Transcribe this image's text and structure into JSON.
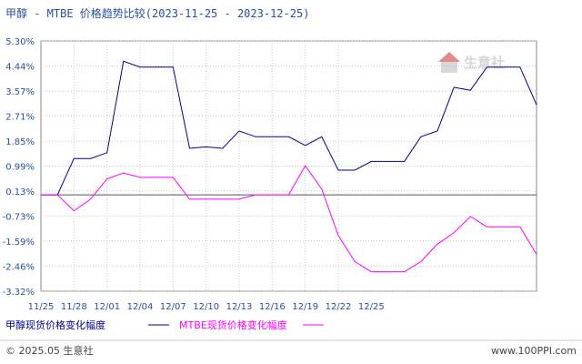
{
  "header": {
    "title": "甲醇 - MTBE 价格趋势比较(2023-11-25 - 2023-12-25)"
  },
  "watermark": {
    "text": "生意社"
  },
  "footer": {
    "copyright": "© 2025.05 生意社",
    "site": "www.100PPI.com"
  },
  "chart_data": {
    "type": "line",
    "title": "甲醇 - MTBE 价格趋势比较(2023-11-25 - 2023-12-25)",
    "xlabel": "",
    "ylabel": "",
    "ylim": [
      -3.32,
      5.3
    ],
    "y_ticks": [
      "5.30%",
      "4.44%",
      "3.57%",
      "2.71%",
      "1.85%",
      "0.99%",
      "0.13%",
      "-0.73%",
      "-1.59%",
      "-2.46%",
      "-3.32%"
    ],
    "y_tick_values": [
      5.3,
      4.44,
      3.57,
      2.71,
      1.85,
      0.99,
      0.13,
      -0.73,
      -1.59,
      -2.46,
      -3.32
    ],
    "x_ticks": [
      "11/25",
      "11/28",
      "12/01",
      "12/04",
      "12/07",
      "12/10",
      "12/13",
      "12/16",
      "12/19",
      "12/22",
      "12/25"
    ],
    "x_tick_values": [
      0,
      3,
      6,
      9,
      12,
      15,
      18,
      21,
      24,
      27,
      30
    ],
    "zero_line": 0,
    "grid": true,
    "legend_position": "bottom-left",
    "series": [
      {
        "name": "甲醇现货价格变化幅度",
        "color": "#00008b",
        "points": [
          [
            0,
            0
          ],
          [
            1.5,
            0
          ],
          [
            3,
            1.25
          ],
          [
            4.5,
            1.25
          ],
          [
            6,
            1.45
          ],
          [
            7.5,
            4.6
          ],
          [
            9,
            4.4
          ],
          [
            10.5,
            4.4
          ],
          [
            12,
            4.4
          ],
          [
            13.5,
            1.6
          ],
          [
            15,
            1.65
          ],
          [
            16.5,
            1.6
          ],
          [
            18,
            2.2
          ],
          [
            19.5,
            2.0
          ],
          [
            21,
            2.0
          ],
          [
            22.5,
            2.0
          ],
          [
            24,
            1.7
          ],
          [
            25.5,
            2.0
          ],
          [
            27,
            0.85
          ],
          [
            28.5,
            0.85
          ],
          [
            30,
            1.15
          ],
          [
            31.5,
            1.15
          ],
          [
            33,
            1.15
          ],
          [
            34.5,
            2.0
          ],
          [
            36,
            2.2
          ],
          [
            37.5,
            3.7
          ],
          [
            39,
            3.6
          ],
          [
            40.5,
            4.4
          ],
          [
            42,
            4.4
          ],
          [
            43.5,
            4.4
          ],
          [
            45,
            3.1
          ]
        ]
      },
      {
        "name": "MTBE现货价格变化幅度",
        "color": "#ff00ff",
        "points": [
          [
            0,
            0
          ],
          [
            1.5,
            0
          ],
          [
            3,
            -0.55
          ],
          [
            4.5,
            -0.15
          ],
          [
            6,
            0.55
          ],
          [
            7.5,
            0.75
          ],
          [
            9,
            0.6
          ],
          [
            10.5,
            0.6
          ],
          [
            12,
            0.6
          ],
          [
            13.5,
            -0.15
          ],
          [
            15,
            -0.15
          ],
          [
            16.5,
            -0.15
          ],
          [
            18,
            -0.15
          ],
          [
            19.5,
            0
          ],
          [
            21,
            0
          ],
          [
            22.5,
            0
          ],
          [
            24,
            1.0
          ],
          [
            25.5,
            0.2
          ],
          [
            27,
            -1.4
          ],
          [
            28.5,
            -2.3
          ],
          [
            30,
            -2.65
          ],
          [
            31.5,
            -2.65
          ],
          [
            33,
            -2.65
          ],
          [
            34.5,
            -2.3
          ],
          [
            36,
            -1.7
          ],
          [
            37.5,
            -1.3
          ],
          [
            39,
            -0.75
          ],
          [
            40.5,
            -1.1
          ],
          [
            42,
            -1.1
          ],
          [
            43.5,
            -1.1
          ],
          [
            45,
            -2.05
          ]
        ]
      }
    ]
  }
}
